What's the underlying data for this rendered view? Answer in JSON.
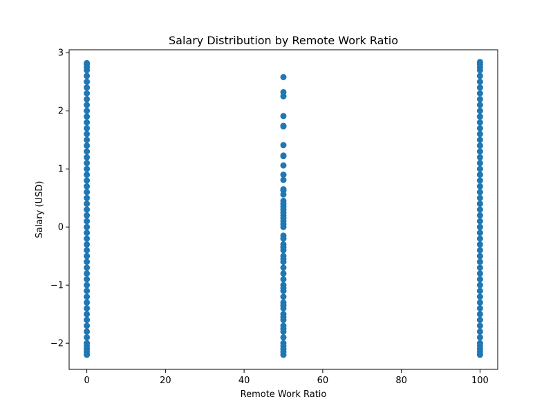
{
  "chart_data": {
    "type": "scatter",
    "title": "Salary Distribution by Remote Work Ratio",
    "xlabel": "Remote Work Ratio",
    "ylabel": "Salary (USD)",
    "xlim": [
      -4.5,
      104.5
    ],
    "ylim": [
      -2.45,
      3.05
    ],
    "xticks": [
      0,
      20,
      40,
      60,
      80,
      100
    ],
    "xtick_labels": [
      "0",
      "20",
      "40",
      "60",
      "80",
      "100"
    ],
    "yticks": [
      -2,
      -1,
      0,
      1,
      2,
      3
    ],
    "ytick_labels": [
      "−2",
      "−1",
      "0",
      "1",
      "2",
      "3"
    ],
    "grid": false,
    "marker_color": "#1f77b4",
    "series": [
      {
        "points": [
          [
            0,
            -2.2
          ],
          [
            0,
            -2.15
          ],
          [
            0,
            -2.1
          ],
          [
            0,
            -2.05
          ],
          [
            0,
            -2.0
          ],
          [
            0,
            -1.9
          ],
          [
            0,
            -1.8
          ],
          [
            0,
            -1.7
          ],
          [
            0,
            -1.6
          ],
          [
            0,
            -1.5
          ],
          [
            0,
            -1.4
          ],
          [
            0,
            -1.3
          ],
          [
            0,
            -1.2
          ],
          [
            0,
            -1.1
          ],
          [
            0,
            -1.0
          ],
          [
            0,
            -0.9
          ],
          [
            0,
            -0.8
          ],
          [
            0,
            -0.7
          ],
          [
            0,
            -0.6
          ],
          [
            0,
            -0.5
          ],
          [
            0,
            -0.4
          ],
          [
            0,
            -0.3
          ],
          [
            0,
            -0.2
          ],
          [
            0,
            -0.1
          ],
          [
            0,
            0.0
          ],
          [
            0,
            0.1
          ],
          [
            0,
            0.2
          ],
          [
            0,
            0.3
          ],
          [
            0,
            0.4
          ],
          [
            0,
            0.5
          ],
          [
            0,
            0.6
          ],
          [
            0,
            0.7
          ],
          [
            0,
            0.8
          ],
          [
            0,
            0.9
          ],
          [
            0,
            1.0
          ],
          [
            0,
            1.1
          ],
          [
            0,
            1.2
          ],
          [
            0,
            1.3
          ],
          [
            0,
            1.4
          ],
          [
            0,
            1.5
          ],
          [
            0,
            1.6
          ],
          [
            0,
            1.7
          ],
          [
            0,
            1.8
          ],
          [
            0,
            1.9
          ],
          [
            0,
            2.0
          ],
          [
            0,
            2.1
          ],
          [
            0,
            2.2
          ],
          [
            0,
            2.3
          ],
          [
            0,
            2.4
          ],
          [
            0,
            2.5
          ],
          [
            0,
            2.6
          ],
          [
            0,
            2.7
          ],
          [
            0,
            2.75
          ],
          [
            0,
            2.8
          ],
          [
            0,
            2.82
          ],
          [
            50,
            2.58
          ],
          [
            50,
            2.32
          ],
          [
            50,
            2.25
          ],
          [
            50,
            1.91
          ],
          [
            50,
            1.74
          ],
          [
            50,
            1.73
          ],
          [
            50,
            1.41
          ],
          [
            50,
            1.23
          ],
          [
            50,
            1.22
          ],
          [
            50,
            1.06
          ],
          [
            50,
            0.9
          ],
          [
            50,
            0.81
          ],
          [
            50,
            0.65
          ],
          [
            50,
            0.63
          ],
          [
            50,
            0.56
          ],
          [
            50,
            0.45
          ],
          [
            50,
            0.4
          ],
          [
            50,
            0.35
          ],
          [
            50,
            0.3
          ],
          [
            50,
            0.25
          ],
          [
            50,
            0.2
          ],
          [
            50,
            0.15
          ],
          [
            50,
            0.1
          ],
          [
            50,
            0.05
          ],
          [
            50,
            0.0
          ],
          [
            50,
            -0.15
          ],
          [
            50,
            -0.2
          ],
          [
            50,
            -0.3
          ],
          [
            50,
            -0.35
          ],
          [
            50,
            -0.4
          ],
          [
            50,
            -0.5
          ],
          [
            50,
            -0.55
          ],
          [
            50,
            -0.6
          ],
          [
            50,
            -0.7
          ],
          [
            50,
            -0.8
          ],
          [
            50,
            -0.9
          ],
          [
            50,
            -1.0
          ],
          [
            50,
            -1.05
          ],
          [
            50,
            -1.1
          ],
          [
            50,
            -1.2
          ],
          [
            50,
            -1.3
          ],
          [
            50,
            -1.35
          ],
          [
            50,
            -1.4
          ],
          [
            50,
            -1.5
          ],
          [
            50,
            -1.55
          ],
          [
            50,
            -1.6
          ],
          [
            50,
            -1.7
          ],
          [
            50,
            -1.75
          ],
          [
            50,
            -1.8
          ],
          [
            50,
            -1.9
          ],
          [
            50,
            -2.0
          ],
          [
            50,
            -2.05
          ],
          [
            50,
            -2.1
          ],
          [
            50,
            -2.15
          ],
          [
            50,
            -2.2
          ],
          [
            100,
            -2.2
          ],
          [
            100,
            -2.15
          ],
          [
            100,
            -2.1
          ],
          [
            100,
            -2.05
          ],
          [
            100,
            -2.0
          ],
          [
            100,
            -1.9
          ],
          [
            100,
            -1.8
          ],
          [
            100,
            -1.7
          ],
          [
            100,
            -1.6
          ],
          [
            100,
            -1.5
          ],
          [
            100,
            -1.4
          ],
          [
            100,
            -1.3
          ],
          [
            100,
            -1.2
          ],
          [
            100,
            -1.1
          ],
          [
            100,
            -1.0
          ],
          [
            100,
            -0.9
          ],
          [
            100,
            -0.8
          ],
          [
            100,
            -0.7
          ],
          [
            100,
            -0.6
          ],
          [
            100,
            -0.5
          ],
          [
            100,
            -0.4
          ],
          [
            100,
            -0.3
          ],
          [
            100,
            -0.2
          ],
          [
            100,
            -0.1
          ],
          [
            100,
            0.0
          ],
          [
            100,
            0.1
          ],
          [
            100,
            0.2
          ],
          [
            100,
            0.3
          ],
          [
            100,
            0.4
          ],
          [
            100,
            0.5
          ],
          [
            100,
            0.6
          ],
          [
            100,
            0.7
          ],
          [
            100,
            0.8
          ],
          [
            100,
            0.9
          ],
          [
            100,
            1.0
          ],
          [
            100,
            1.1
          ],
          [
            100,
            1.2
          ],
          [
            100,
            1.3
          ],
          [
            100,
            1.4
          ],
          [
            100,
            1.5
          ],
          [
            100,
            1.6
          ],
          [
            100,
            1.7
          ],
          [
            100,
            1.8
          ],
          [
            100,
            1.9
          ],
          [
            100,
            2.0
          ],
          [
            100,
            2.1
          ],
          [
            100,
            2.2
          ],
          [
            100,
            2.3
          ],
          [
            100,
            2.4
          ],
          [
            100,
            2.5
          ],
          [
            100,
            2.6
          ],
          [
            100,
            2.7
          ],
          [
            100,
            2.75
          ],
          [
            100,
            2.8
          ],
          [
            100,
            2.84
          ]
        ]
      }
    ]
  }
}
